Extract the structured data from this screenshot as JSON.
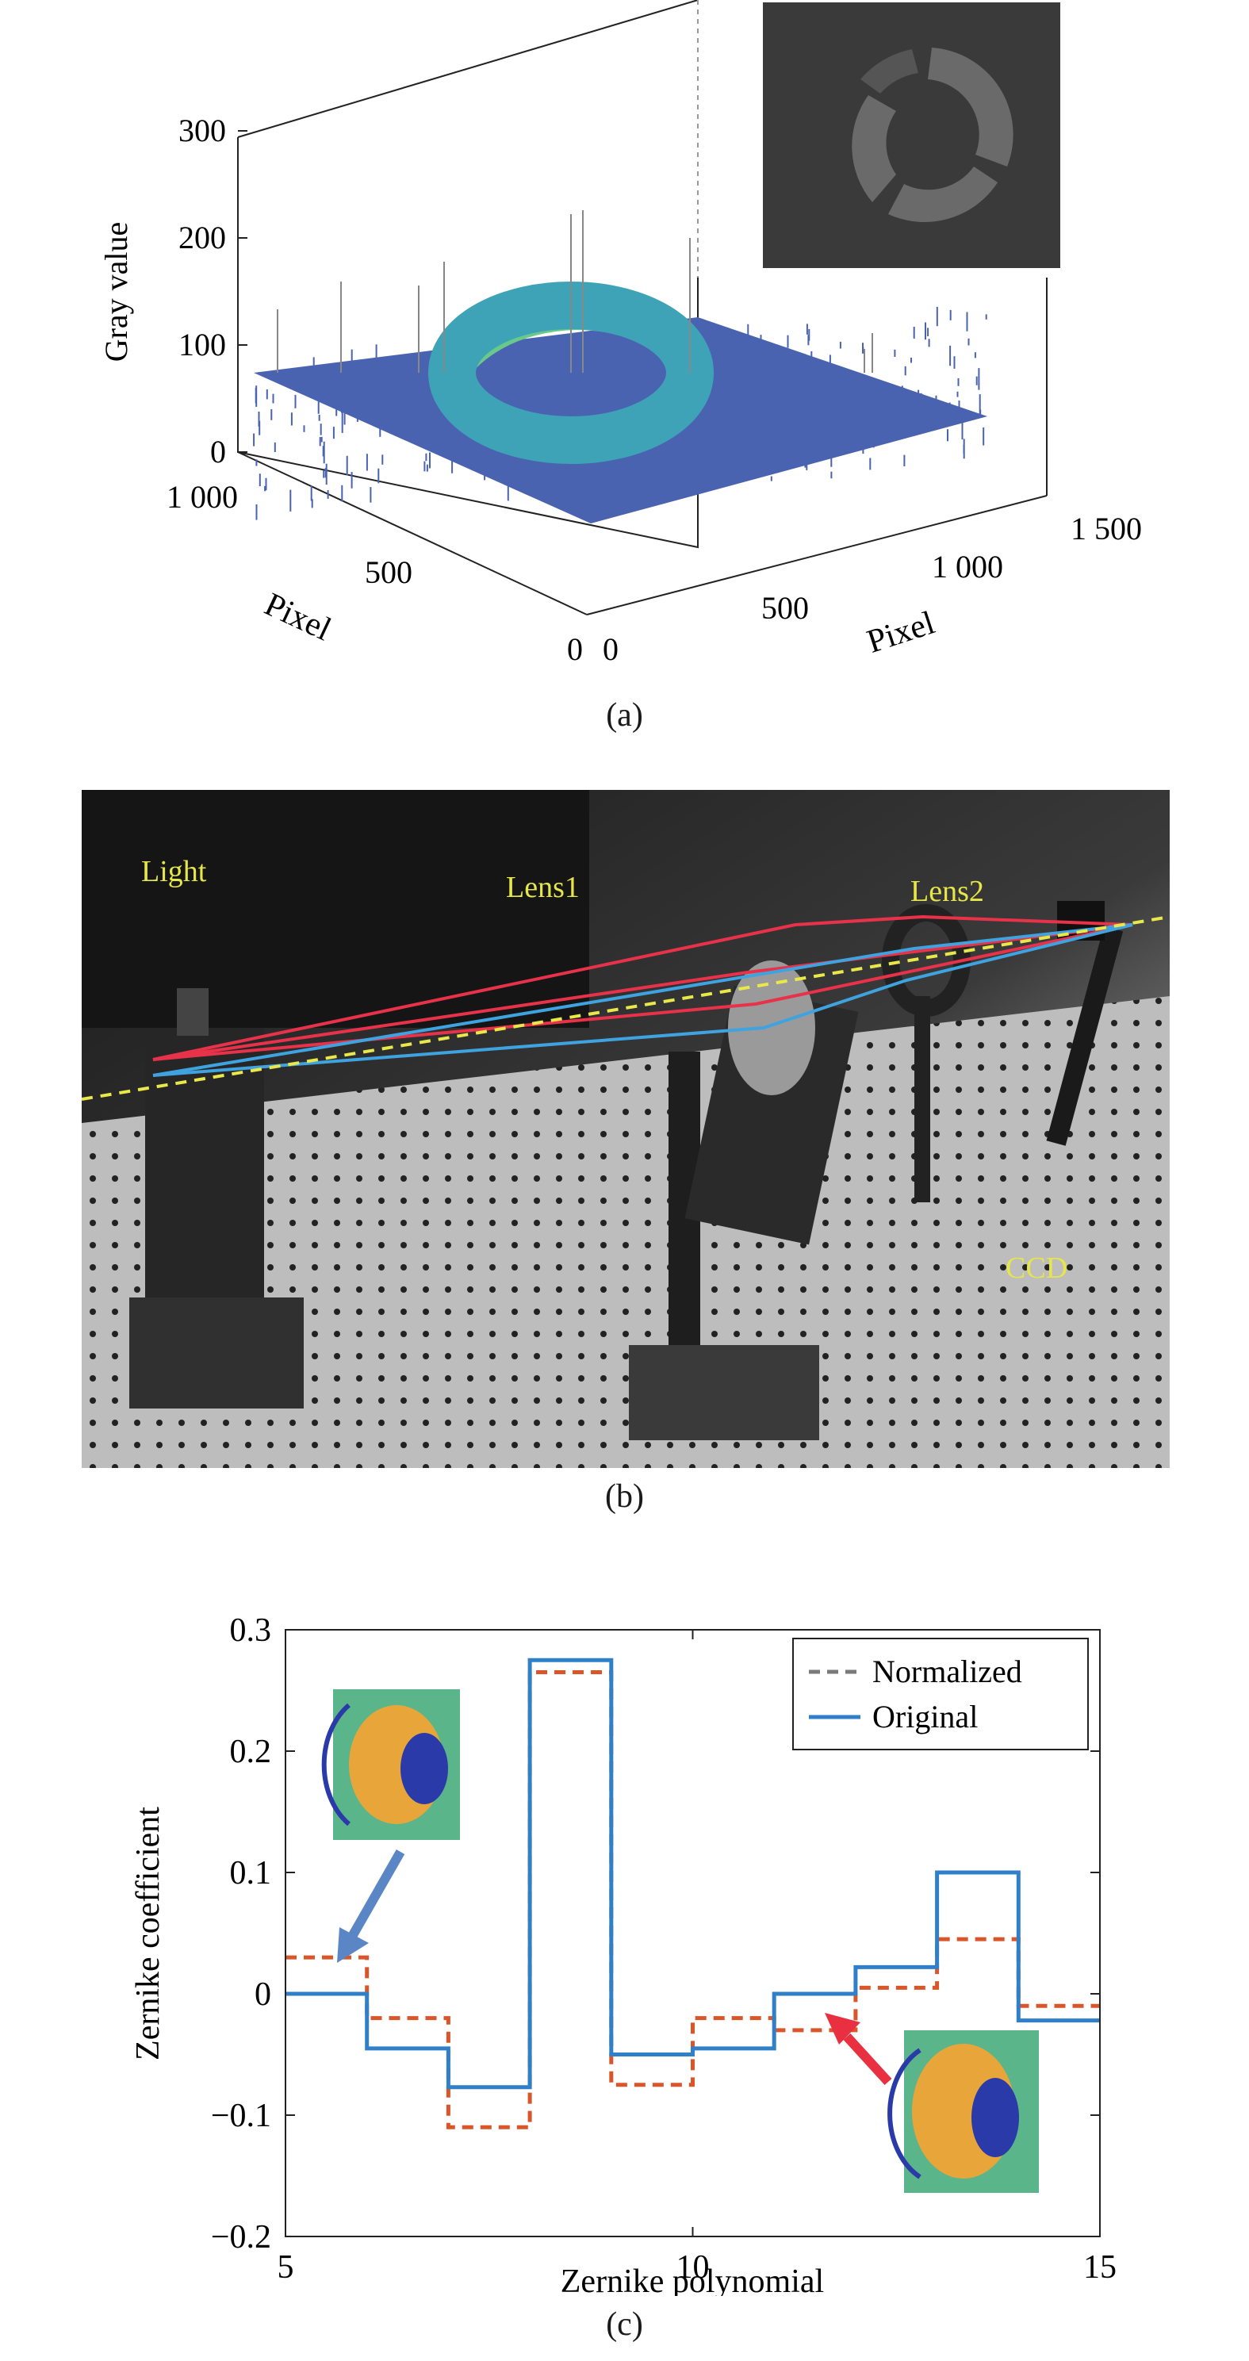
{
  "captions": {
    "a": "(a)",
    "b": "(b)",
    "c": "(c)"
  },
  "panel_a": {
    "zlabel": "Gray value",
    "zticks": [
      "0",
      "100",
      "200",
      "300"
    ],
    "y_axis_label": "Pixel",
    "y_ticks": [
      "1 000",
      "500",
      "0"
    ],
    "x_axis_label": "Pixel",
    "x_ticks": [
      "0",
      "500",
      "1 000",
      "1 500"
    ],
    "surface_colors": {
      "base": "#4a63b0",
      "ring": "#3fa3b8",
      "peak": "#69c98a"
    }
  },
  "panel_b": {
    "labels": {
      "light": "Light",
      "lens1": "Lens1",
      "lens2": "Lens2",
      "ccd": "CCD"
    },
    "ray_colors": {
      "red": "#e8324a",
      "blue": "#3fa3e0",
      "axis": "#e8e84a"
    }
  },
  "chart_data": {
    "type": "line",
    "xlabel": "Zernike polynomial",
    "ylabel": "Zernike coefficient",
    "xlim": [
      5,
      15
    ],
    "ylim": [
      -0.2,
      0.3
    ],
    "xticks": [
      5,
      10,
      15
    ],
    "yticks": [
      -0.2,
      -0.1,
      0,
      0.1,
      0.2,
      0.3
    ],
    "ytick_labels": [
      "−0.2",
      "−0.1",
      "0",
      "0.1",
      "0.2",
      "0.3"
    ],
    "step": "post",
    "legend_position": "top-right",
    "series": [
      {
        "name": "Normalized",
        "style": "dashed",
        "color": "#d9562a",
        "x": [
          5,
          6,
          7,
          8,
          9,
          10,
          11,
          12,
          13,
          14,
          15
        ],
        "values": [
          0.03,
          -0.02,
          -0.11,
          0.265,
          -0.075,
          -0.02,
          -0.03,
          0.005,
          0.045,
          -0.01,
          -0.01
        ]
      },
      {
        "name": "Original",
        "style": "solid",
        "color": "#2f7fc9",
        "x": [
          5,
          6,
          7,
          8,
          9,
          10,
          11,
          12,
          13,
          14,
          15
        ],
        "values": [
          0,
          -0.045,
          -0.077,
          0.275,
          -0.05,
          -0.045,
          0,
          0.022,
          0.1,
          -0.022,
          -0.022
        ]
      }
    ],
    "legend_dashed_color": "#7a7a7a"
  }
}
